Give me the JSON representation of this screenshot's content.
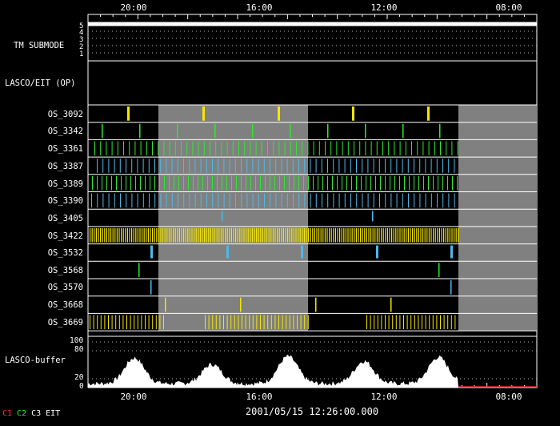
{
  "header_ticks": [
    "20:00",
    "16:00",
    "12:00",
    "08:00"
  ],
  "footer_ticks": [
    "20:00",
    "16:00",
    "12:00",
    "08:00"
  ],
  "timestamp": "2001/05/15 12:26:00.000",
  "submode": {
    "label": "TM SUBMODE",
    "scale": [
      "5",
      "4",
      "3",
      "2",
      "1"
    ]
  },
  "lasco_eit_label": "LASCO/EIT (OP)",
  "rows": [
    {
      "name": "OS_3092",
      "color": "#f5e600"
    },
    {
      "name": "OS_3342",
      "color": "#2ee82e"
    },
    {
      "name": "OS_3361",
      "color": "#2ee82e"
    },
    {
      "name": "OS_3387",
      "color": "#4fb8e8"
    },
    {
      "name": "OS_3389",
      "color": "#2ee82e"
    },
    {
      "name": "OS_3390",
      "color": "#4fb8e8"
    },
    {
      "name": "OS_3405",
      "color": "#4fb8e8"
    },
    {
      "name": "OS_3422",
      "color": "#f5e600"
    },
    {
      "name": "OS_3532",
      "color": "#4fb8e8"
    },
    {
      "name": "OS_3568",
      "color": "#2ee82e"
    },
    {
      "name": "OS_3570",
      "color": "#4fb8e8"
    },
    {
      "name": "OS_3668",
      "color": "#f5e600"
    },
    {
      "name": "OS_3669",
      "color": "#f5e600"
    }
  ],
  "buffer": {
    "label": "LASCO-buffer",
    "scale": [
      "100",
      "80",
      "20",
      "0"
    ]
  },
  "legend": [
    {
      "label": "C1",
      "color": "#ff3030"
    },
    {
      "label": "C2",
      "color": "#2ee82e"
    },
    {
      "label": "C3",
      "color": "#ffffff"
    },
    {
      "label": "EIT",
      "color": "#ffffff"
    }
  ]
}
